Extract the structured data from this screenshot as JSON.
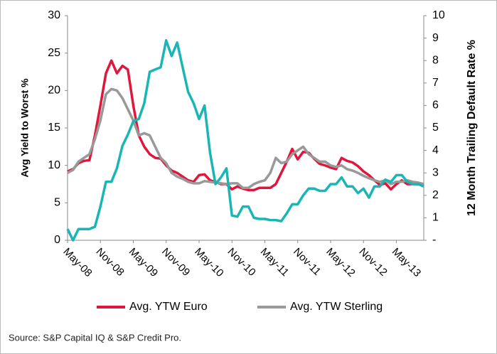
{
  "chart_data": {
    "type": "line",
    "source": "Source: S&P Capital IQ & S&P Credit Pro.",
    "y_label": "Avg Yield to Worst %",
    "y2_label": "12 Month Trailing Default Rate %",
    "categories": [
      "May-08",
      null,
      null,
      null,
      null,
      null,
      "Nov-08",
      null,
      null,
      null,
      null,
      null,
      "May-09",
      null,
      null,
      null,
      null,
      null,
      "Nov-09",
      null,
      null,
      null,
      null,
      null,
      "May-10",
      null,
      null,
      null,
      null,
      null,
      "Nov-10",
      null,
      null,
      null,
      null,
      null,
      "May-11",
      null,
      null,
      null,
      null,
      null,
      "Nov-11",
      null,
      null,
      null,
      null,
      null,
      "May-12",
      null,
      null,
      null,
      null,
      null,
      "Nov-12",
      null,
      null,
      null,
      null,
      null,
      "May-13",
      null,
      null,
      null,
      null,
      null
    ],
    "series": [
      {
        "name": "Avg. YTW Euro",
        "color": "#e0173d",
        "values": [
          9.2,
          9.5,
          10.3,
          10.6,
          10.7,
          14,
          18,
          22.3,
          24,
          22.3,
          23.3,
          22.8,
          18,
          14,
          12.5,
          11.5,
          11,
          10.9,
          10,
          9.3,
          9,
          8.5,
          8,
          7.8,
          8.7,
          8.8,
          8,
          7.8,
          7.5,
          7.5,
          6.8,
          7.2,
          6.9,
          6.7,
          6.7,
          7,
          7,
          7,
          7.5,
          9,
          10.5,
          12.2,
          10.8,
          11.8,
          11.7,
          10.9,
          10.2,
          10,
          9.7,
          9.5,
          11,
          10.6,
          10.4,
          9.9,
          9.2,
          8.7,
          8,
          7.4,
          7.6,
          6.8,
          7.5,
          8,
          7.5,
          7.5,
          7.5,
          7.4
        ]
      },
      {
        "name": "Avg. YTW Sterling",
        "color": "#999999",
        "values": [
          9,
          9.4,
          10.5,
          11,
          11.5,
          13.5,
          16,
          19.5,
          20.2,
          20,
          19,
          17.5,
          16,
          14,
          14.3,
          14,
          12.5,
          11,
          10.3,
          9,
          8.5,
          8.2,
          7.8,
          7.6,
          7.6,
          7.9,
          7.8,
          7.7,
          7.6,
          7.5,
          7.6,
          7.6,
          7,
          7,
          7.5,
          7.8,
          8,
          9,
          11,
          10.3,
          10.5,
          11.5,
          12,
          12.5,
          11.5,
          11,
          10.5,
          10.5,
          10,
          9.8,
          10,
          9.5,
          9.3,
          9,
          8.6,
          8.3,
          8,
          7.8,
          8,
          7.5,
          7.8,
          7.8,
          8,
          7.8,
          7.7,
          7.5
        ]
      },
      {
        "color": "#1ab5b5",
        "axis": "y2",
        "values": [
          0.5,
          0,
          0.5,
          0.5,
          0.5,
          0.6,
          1.5,
          2.6,
          2.6,
          3.2,
          4.2,
          4.7,
          5.3,
          5.4,
          6.1,
          7.5,
          7.6,
          7.7,
          8.9,
          8.2,
          8.8,
          7.7,
          6.6,
          6.1,
          5.4,
          6,
          3.9,
          2.5,
          2.8,
          3.2,
          1.1,
          1.05,
          1.5,
          1.5,
          1,
          0.95,
          0.95,
          0.9,
          0.9,
          0.85,
          1.2,
          1.6,
          1.6,
          2,
          2.3,
          2.3,
          2.2,
          2.2,
          2.5,
          2.5,
          2.8,
          2.4,
          2.4,
          2.1,
          2.3,
          1.9,
          2.4,
          2.4,
          2.7,
          2.6,
          2.9,
          2.9,
          2.6,
          2.5,
          2.5,
          2.4
        ]
      }
    ],
    "ylim": [
      0,
      30
    ],
    "yticks": [
      0,
      5,
      10,
      15,
      20,
      25,
      30
    ],
    "y2lim": [
      0,
      10
    ],
    "y2ticks": [
      {
        "value": 0,
        "label": "-"
      },
      1,
      2,
      3,
      4,
      5,
      6,
      7,
      8,
      9,
      10
    ],
    "grid": false
  }
}
